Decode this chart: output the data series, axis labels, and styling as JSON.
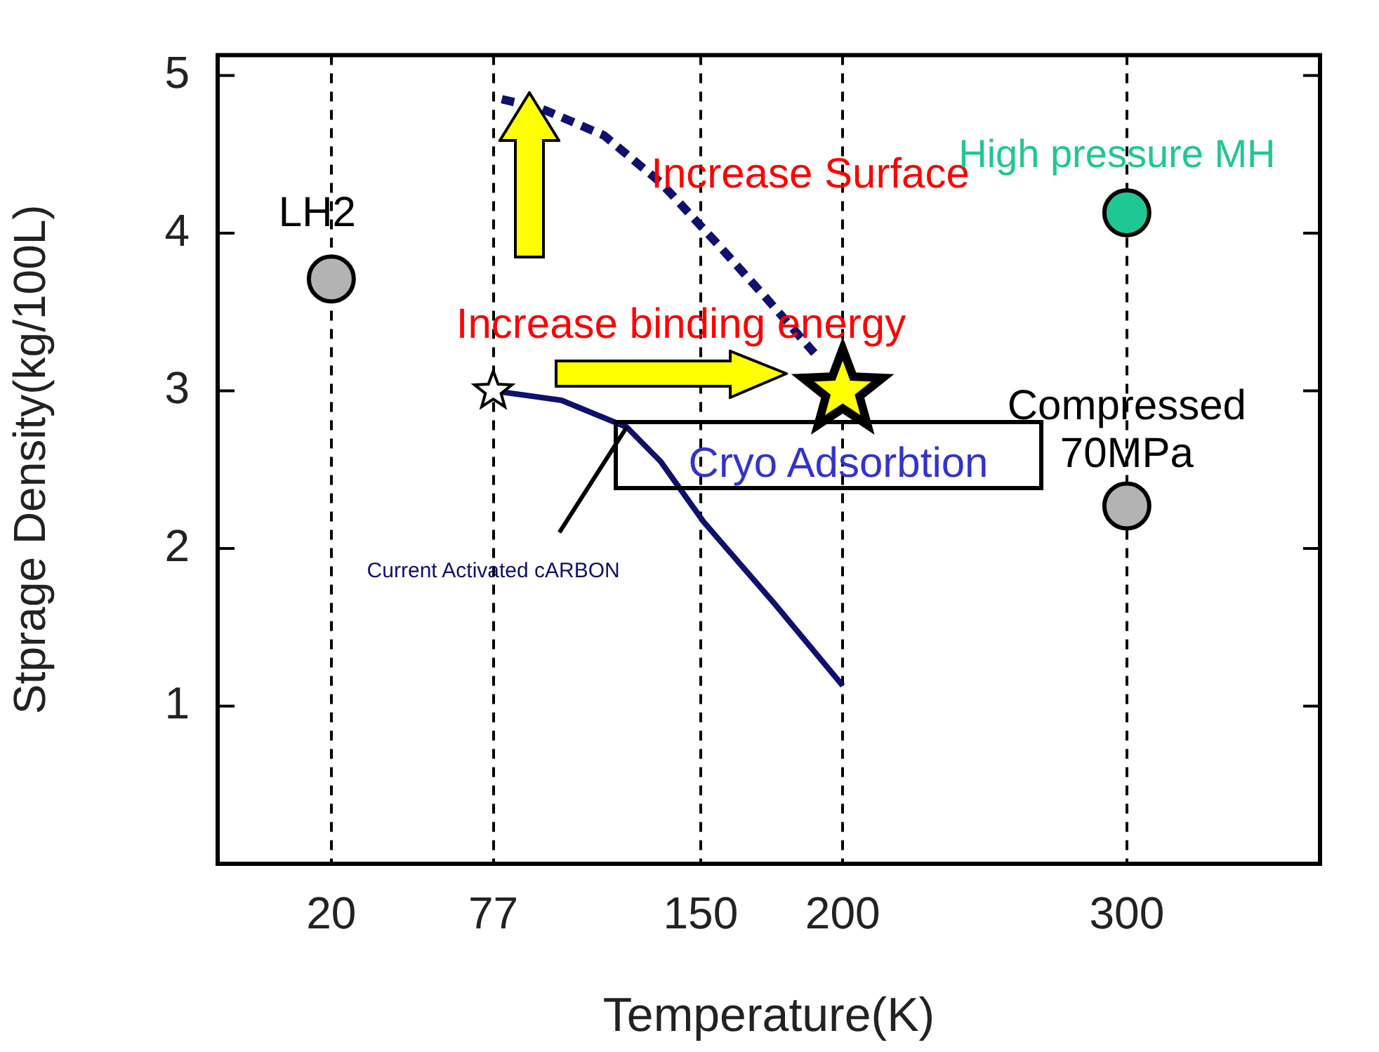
{
  "chart_data": {
    "type": "scatter",
    "xlabel": "Temperature(K)",
    "ylabel": "Stprage Density(kg/100L)",
    "xlim": [
      -20,
      368
    ],
    "ylim": [
      0,
      5.13
    ],
    "xticks": [
      20,
      77,
      150,
      200,
      300
    ],
    "yticks": [
      1,
      2,
      3,
      4,
      5
    ],
    "grid": "x",
    "legend": false,
    "series": [
      {
        "type": "scatter",
        "color": "#b3b3b3",
        "marker": "circle",
        "x": [
          20
        ],
        "values": [
          3.71
        ]
      },
      {
        "type": "scatter",
        "color": "#1fc795",
        "marker": "circle",
        "x": [
          300
        ],
        "values": [
          4.13
        ]
      },
      {
        "type": "scatter",
        "color": "#b3b3b3",
        "marker": "circle",
        "x": [
          300
        ],
        "values": [
          2.27
        ]
      },
      {
        "type": "line",
        "color": "#10106e",
        "marker": "none",
        "line_style": "solid",
        "x": [
          77,
          101,
          124,
          136,
          151,
          176,
          200
        ],
        "values": [
          3.0,
          2.94,
          2.77,
          2.55,
          2.17,
          1.65,
          1.13
        ]
      },
      {
        "type": "line",
        "color": "#10106e",
        "marker": "none",
        "line_style": "dashed",
        "x": [
          80,
          94,
          116,
          136,
          156,
          173,
          190
        ],
        "values": [
          4.85,
          4.79,
          4.62,
          4.32,
          3.93,
          3.59,
          3.24
        ]
      },
      {
        "type": "scatter",
        "color": "#ffffff",
        "marker": "star",
        "x": [
          77
        ],
        "values": [
          3.0
        ]
      },
      {
        "type": "scatter",
        "color": "#ffff00",
        "marker": "star",
        "x": [
          200
        ],
        "values": [
          3.0
        ]
      }
    ],
    "annotations": [
      "Increase Surface",
      "Increase binding energy",
      "Cryo Adsorbtion",
      {
        "text": "Current Activated cARBON",
        "x": 124,
        "y": 2.77
      },
      {
        "text": "LH2",
        "x": 20,
        "y": 3.71
      },
      {
        "text": "High pressure MH",
        "x": 300,
        "y": 4.13
      },
      {
        "text": "Compressed 70MPa",
        "x": 300,
        "y": 2.27
      }
    ]
  }
}
